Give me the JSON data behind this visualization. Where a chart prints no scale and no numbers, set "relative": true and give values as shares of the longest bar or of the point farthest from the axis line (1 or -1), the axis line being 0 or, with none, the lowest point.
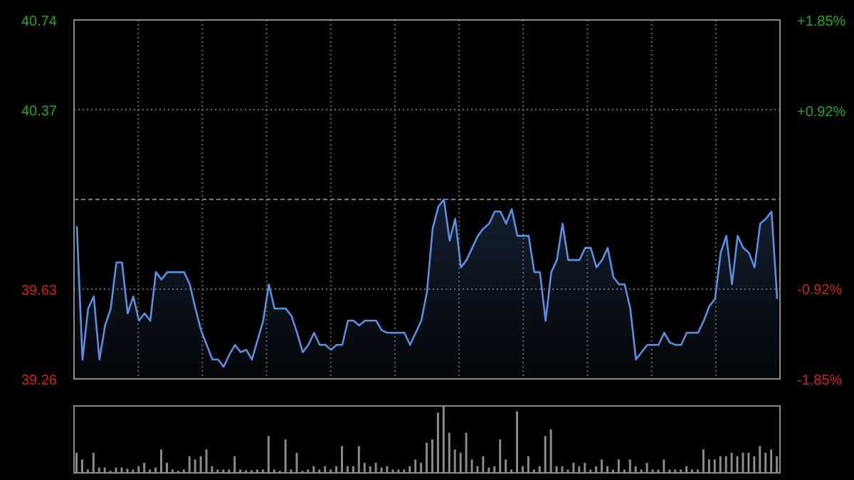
{
  "chart_data": [
    {
      "type": "area",
      "categories": [
        null,
        null,
        null,
        null,
        null,
        null,
        null,
        null,
        null,
        null,
        null,
        null,
        null,
        null,
        null,
        null,
        null,
        null,
        null,
        null,
        null,
        null,
        null,
        null,
        null,
        null,
        null,
        null,
        null,
        null,
        null,
        null,
        null,
        null,
        null,
        null,
        null,
        null,
        null,
        null,
        null,
        null,
        null,
        null,
        null,
        null,
        null,
        null,
        null,
        null,
        null,
        null,
        null,
        null,
        null,
        null,
        null,
        null,
        null,
        null,
        null,
        null,
        null,
        null,
        null,
        null,
        null,
        null,
        null,
        null,
        null,
        null,
        null,
        null,
        null,
        null,
        null,
        null,
        null,
        null,
        null,
        null,
        null,
        null,
        null,
        null,
        null,
        null,
        null,
        null,
        null,
        null,
        null,
        null,
        null,
        null,
        null,
        null,
        null,
        null,
        null,
        null,
        null,
        null,
        null,
        null,
        null,
        null,
        null,
        null,
        null,
        null,
        null,
        null,
        null,
        null,
        null,
        null,
        null,
        null,
        null,
        null,
        null,
        null,
        null
      ],
      "series": [
        {
          "color": "#5b8fe0",
          "values": [
            39.89,
            39.34,
            39.55,
            39.6,
            39.34,
            39.48,
            39.55,
            39.74,
            39.74,
            39.53,
            39.6,
            39.5,
            39.53,
            39.5,
            39.7,
            39.67,
            39.7,
            39.7,
            39.7,
            39.7,
            39.65,
            39.55,
            39.46,
            39.4,
            39.34,
            39.34,
            39.31,
            39.36,
            39.4,
            39.37,
            39.38,
            39.34,
            39.42,
            39.5,
            39.65,
            39.55,
            39.55,
            39.55,
            39.52,
            39.45,
            39.37,
            39.4,
            39.45,
            39.4,
            39.4,
            39.38,
            39.4,
            39.4,
            39.5,
            39.5,
            39.48,
            39.5,
            39.5,
            39.5,
            39.46,
            39.45,
            39.45,
            39.45,
            39.45,
            39.4,
            39.45,
            39.5,
            39.62,
            39.88,
            39.97,
            40.0,
            39.83,
            39.92,
            39.72,
            39.75,
            39.8,
            39.85,
            39.88,
            39.9,
            39.95,
            39.95,
            39.9,
            39.96,
            39.85,
            39.85,
            39.85,
            39.7,
            39.7,
            39.5,
            39.7,
            39.75,
            39.9,
            39.75,
            39.75,
            39.75,
            39.8,
            39.8,
            39.72,
            39.75,
            39.8,
            39.68,
            39.65,
            39.65,
            39.55,
            39.34,
            39.37,
            39.4,
            39.4,
            39.4,
            39.45,
            39.41,
            39.4,
            39.4,
            39.45,
            39.45,
            39.45,
            39.5,
            39.56,
            39.59,
            39.78,
            39.85,
            39.65,
            39.85,
            39.8,
            39.78,
            39.72,
            39.9,
            39.92,
            39.95,
            39.59
          ]
        }
      ],
      "ylim": [
        39.26,
        40.74
      ],
      "yticks": [
        39.26,
        39.63,
        40.37,
        40.74
      ],
      "y2lim": [
        -1.85,
        1.85
      ],
      "y2ticks": [
        {
          "value": -1.85,
          "label": "-1.85%"
        },
        {
          "value": -0.92,
          "label": "-0.92%"
        },
        {
          "value": 0.92,
          "label": "+0.92%"
        },
        {
          "value": 1.85,
          "label": "+1.85%"
        }
      ],
      "ref_lines": [
        {
          "axis": "y",
          "value": 40.0,
          "label": null,
          "line_style": "dashed"
        }
      ],
      "grid": true,
      "tick_labels": "y",
      "legend": false
    },
    {
      "type": "bar",
      "relative": true,
      "categories": [
        null,
        null,
        null,
        null,
        null,
        null,
        null,
        null,
        null,
        null,
        null,
        null,
        null,
        null,
        null,
        null,
        null,
        null,
        null,
        null,
        null,
        null,
        null,
        null,
        null,
        null,
        null,
        null,
        null,
        null,
        null,
        null,
        null,
        null,
        null,
        null,
        null,
        null,
        null,
        null,
        null,
        null,
        null,
        null,
        null,
        null,
        null,
        null,
        null,
        null,
        null,
        null,
        null,
        null,
        null,
        null,
        null,
        null,
        null,
        null,
        null,
        null,
        null,
        null,
        null,
        null,
        null,
        null,
        null,
        null,
        null,
        null,
        null,
        null,
        null,
        null,
        null,
        null,
        null,
        null,
        null,
        null,
        null,
        null,
        null,
        null,
        null,
        null,
        null,
        null,
        null,
        null,
        null,
        null,
        null,
        null,
        null,
        null,
        null,
        null,
        null,
        null,
        null,
        null,
        null,
        null,
        null,
        null,
        null,
        null,
        null,
        null,
        null,
        null,
        null,
        null,
        null,
        null,
        null,
        null,
        null,
        null,
        null,
        null,
        null
      ],
      "series": [
        {
          "color": "#8a8a8a",
          "values": [
            0.3,
            0.2,
            0.05,
            0.3,
            0.08,
            0.08,
            0.03,
            0.08,
            0.08,
            0.06,
            0.05,
            0.1,
            0.15,
            0.05,
            0.08,
            0.35,
            0.15,
            0.05,
            0.03,
            0.05,
            0.25,
            0.2,
            0.25,
            0.35,
            0.1,
            0.05,
            0.05,
            0.05,
            0.25,
            0.05,
            0.04,
            0.04,
            0.05,
            0.05,
            0.55,
            0.05,
            0.03,
            0.5,
            0.05,
            0.3,
            0.03,
            0.05,
            0.1,
            0.05,
            0.1,
            0.05,
            0.1,
            0.4,
            0.1,
            0.1,
            0.4,
            0.15,
            0.1,
            0.15,
            0.08,
            0.1,
            0.05,
            0.05,
            0.05,
            0.1,
            0.2,
            0.15,
            0.45,
            0.5,
            0.9,
            1.0,
            0.6,
            0.35,
            0.3,
            0.6,
            0.2,
            0.1,
            0.25,
            0.08,
            0.1,
            0.5,
            0.2,
            0.05,
            0.92,
            0.1,
            0.25,
            0.05,
            0.1,
            0.55,
            0.65,
            0.1,
            0.1,
            0.05,
            0.15,
            0.1,
            0.15,
            0.05,
            0.1,
            0.2,
            0.1,
            0.05,
            0.2,
            0.05,
            0.2,
            0.1,
            0.05,
            0.15,
            0.05,
            0.05,
            0.2,
            0.05,
            0.05,
            0.05,
            0.1,
            0.05,
            0.05,
            0.35,
            0.2,
            0.2,
            0.25,
            0.25,
            0.3,
            0.25,
            0.3,
            0.3,
            0.25,
            0.4,
            0.3,
            0.35,
            0.25
          ]
        }
      ],
      "tick_labels": false,
      "legend": false
    }
  ]
}
